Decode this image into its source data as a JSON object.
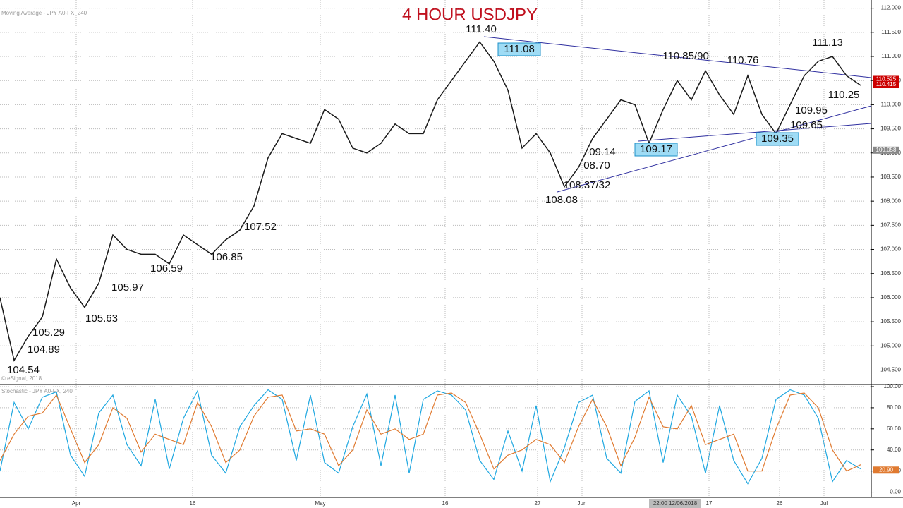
{
  "chart_data": [
    {
      "type": "price",
      "title": "4 HOUR USDJPY",
      "panel_label": "Moving Average - JPY A0-FX, 240",
      "credit": "© eSignal, 2018",
      "series": [
        {
          "name": "USDJPY",
          "color": "#1a1a1a",
          "values": [
            106.0,
            104.7,
            105.2,
            105.6,
            106.8,
            106.2,
            105.8,
            106.3,
            107.3,
            107.0,
            106.9,
            106.9,
            106.7,
            107.3,
            107.1,
            106.9,
            107.2,
            107.4,
            107.9,
            108.9,
            109.4,
            109.3,
            109.2,
            109.9,
            109.7,
            109.1,
            109.0,
            109.2,
            109.6,
            109.4,
            109.4,
            110.1,
            110.5,
            110.9,
            111.3,
            110.9,
            110.3,
            109.1,
            109.4,
            109.0,
            108.3,
            108.7,
            109.3,
            109.7,
            110.1,
            110.0,
            109.2,
            109.9,
            110.5,
            110.1,
            110.7,
            110.2,
            109.8,
            110.6,
            109.8,
            109.4,
            110.0,
            110.6,
            110.9,
            111.0,
            110.6,
            110.4
          ]
        }
      ],
      "xlim": [
        0,
        61
      ],
      "xticks": [
        {
          "value": 5.4,
          "label": "Apr"
        },
        {
          "value": 13.65,
          "label": "16"
        },
        {
          "value": 22.7,
          "label": "May"
        },
        {
          "value": 31.55,
          "label": "16"
        },
        {
          "value": 38.1,
          "label": "27"
        },
        {
          "value": 41.25,
          "label": "Jun"
        },
        {
          "value": 50.25,
          "label": "17"
        },
        {
          "value": 55.25,
          "label": "26"
        },
        {
          "value": 58.4,
          "label": "Jul"
        }
      ],
      "ylim": [
        104.2,
        112.17
      ],
      "yticks": [
        {
          "value": 112,
          "label": "112.000"
        },
        {
          "value": 111.5,
          "label": "111.500"
        },
        {
          "value": 111,
          "label": "111.000"
        },
        {
          "value": 110.5,
          "label": "110.500"
        },
        {
          "value": 110,
          "label": "110.000"
        },
        {
          "value": 109.5,
          "label": "109.500"
        },
        {
          "value": 109,
          "label": "109.000"
        },
        {
          "value": 108.5,
          "label": "108.500"
        },
        {
          "value": 108,
          "label": "108.000"
        },
        {
          "value": 107.5,
          "label": "107.500"
        },
        {
          "value": 107,
          "label": "107.000"
        },
        {
          "value": 106.5,
          "label": "106.500"
        },
        {
          "value": 106,
          "label": "106.000"
        },
        {
          "value": 105.5,
          "label": "105.500"
        },
        {
          "value": 105,
          "label": "105.000"
        },
        {
          "value": 104.5,
          "label": "104.500"
        }
      ],
      "grid": true,
      "price_tags": [
        {
          "value": 110.525,
          "label": "110.525",
          "color": "#cc0000"
        },
        {
          "value": 110.415,
          "label": "110.415",
          "color": "#cc0000"
        },
        {
          "value": 109.058,
          "label": "109.058",
          "color": "#888888"
        }
      ],
      "crosshair_label": "22:00 12/06/2018",
      "annotations": [
        "111.40",
        "111.08",
        "110.85/90",
        "110.76",
        "111.13",
        "110.25",
        "109.95",
        "109.65",
        "109.35",
        "109.17",
        "09.14",
        "08.70",
        "108.37/32",
        "108.08",
        "107.52",
        "106.85",
        "106.59",
        "105.97",
        "105.63",
        "105.29",
        "104.89",
        "104.54"
      ]
    },
    {
      "type": "line",
      "panel_label": "Stochastic - JPY A0-FX, 240",
      "series": [
        {
          "name": "%K",
          "color": "#1ea7e0",
          "values": [
            20,
            85,
            60,
            90,
            95,
            35,
            15,
            75,
            92,
            45,
            25,
            88,
            22,
            70,
            96,
            35,
            18,
            62,
            82,
            97,
            88,
            30,
            92,
            28,
            18,
            62,
            93,
            25,
            92,
            18,
            88,
            96,
            92,
            78,
            30,
            12,
            58,
            20,
            82,
            10,
            42,
            85,
            92,
            32,
            18,
            86,
            96,
            28,
            92,
            72,
            18,
            82,
            30,
            8,
            32,
            88,
            97,
            92,
            70,
            10,
            30,
            22
          ]
        },
        {
          "name": "%D",
          "color": "#e07a30",
          "values": [
            30,
            55,
            72,
            75,
            92,
            60,
            28,
            45,
            80,
            70,
            38,
            55,
            50,
            45,
            85,
            62,
            28,
            40,
            72,
            90,
            92,
            58,
            60,
            55,
            25,
            40,
            78,
            55,
            60,
            50,
            55,
            92,
            94,
            85,
            55,
            22,
            35,
            40,
            50,
            45,
            28,
            62,
            88,
            62,
            25,
            52,
            90,
            62,
            60,
            82,
            45,
            50,
            55,
            20,
            20,
            60,
            92,
            94,
            80,
            40,
            20,
            26
          ]
        }
      ],
      "ylim": [
        -5,
        100
      ],
      "yticks": [
        {
          "value": 0,
          "label": "0.00"
        },
        {
          "value": 20,
          "label": "20.00"
        },
        {
          "value": 40,
          "label": "40.00"
        },
        {
          "value": 60,
          "label": "60.00"
        },
        {
          "value": 80,
          "label": "80.00"
        },
        {
          "value": 100,
          "label": "100.00"
        }
      ],
      "price_tags": [
        {
          "value": 20.9,
          "label": "20.90",
          "color": "#e07a30"
        }
      ]
    }
  ]
}
